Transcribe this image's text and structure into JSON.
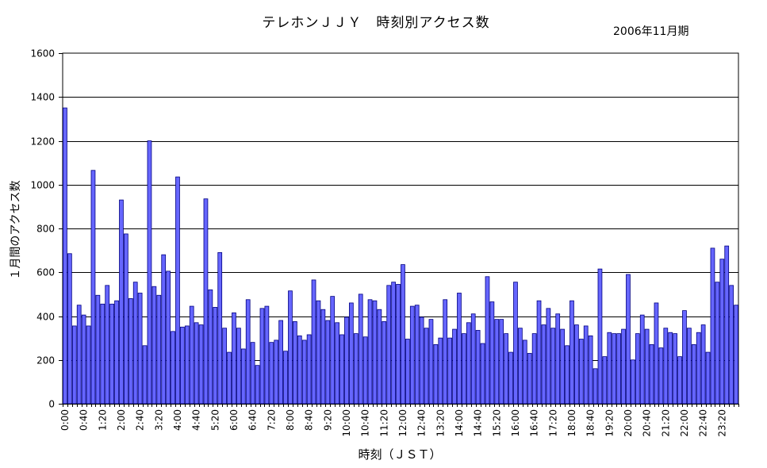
{
  "chart_data": {
    "type": "bar",
    "title": "テレホンＪＪＹ　時刻別アクセス数",
    "subtitle": "2006年11月期",
    "xlabel": "時刻（ＪＳＴ）",
    "ylabel": "１月間のアクセス数",
    "ylim": [
      0,
      1600
    ],
    "yticks": [
      0,
      200,
      400,
      600,
      800,
      1000,
      1200,
      1400,
      1600
    ],
    "grid": true,
    "bar_color": "#6666ff",
    "bar_edge_color": "#000080",
    "xtick_labels": [
      "0:00",
      "0:40",
      "1:20",
      "2:00",
      "2:40",
      "3:20",
      "4:00",
      "4:40",
      "5:20",
      "6:00",
      "6:40",
      "7:20",
      "8:00",
      "8:40",
      "9:20",
      "10:00",
      "10:40",
      "11:20",
      "12:00",
      "12:40",
      "13:20",
      "14:00",
      "14:40",
      "15:20",
      "16:00",
      "16:40",
      "17:20",
      "18:00",
      "18:40",
      "19:20",
      "20:00",
      "20:40",
      "21:20",
      "22:00",
      "22:40",
      "23:20"
    ],
    "xtick_every": 4,
    "values": [
      1350,
      685,
      355,
      450,
      405,
      355,
      1065,
      495,
      455,
      540,
      455,
      470,
      930,
      775,
      480,
      555,
      505,
      265,
      1200,
      535,
      495,
      680,
      605,
      330,
      1035,
      350,
      355,
      445,
      370,
      360,
      935,
      520,
      440,
      690,
      345,
      235,
      415,
      345,
      250,
      475,
      280,
      175,
      435,
      445,
      280,
      290,
      380,
      240,
      515,
      375,
      310,
      290,
      315,
      565,
      470,
      430,
      380,
      490,
      370,
      315,
      395,
      460,
      320,
      500,
      305,
      475,
      470,
      430,
      375,
      540,
      555,
      545,
      635,
      295,
      445,
      450,
      395,
      345,
      385,
      270,
      300,
      475,
      300,
      340,
      505,
      320,
      370,
      410,
      335,
      275,
      580,
      465,
      385,
      385,
      320,
      235,
      555,
      345,
      290,
      230,
      320,
      470,
      360,
      435,
      345,
      410,
      340,
      265,
      470,
      360,
      295,
      355,
      310,
      160,
      615,
      215,
      325,
      320,
      320,
      340,
      590,
      200,
      320,
      405,
      340,
      270,
      460,
      255,
      345,
      325,
      320,
      215,
      425,
      345,
      270,
      325,
      360,
      235,
      710,
      555,
      660,
      720,
      540,
      450
    ]
  }
}
